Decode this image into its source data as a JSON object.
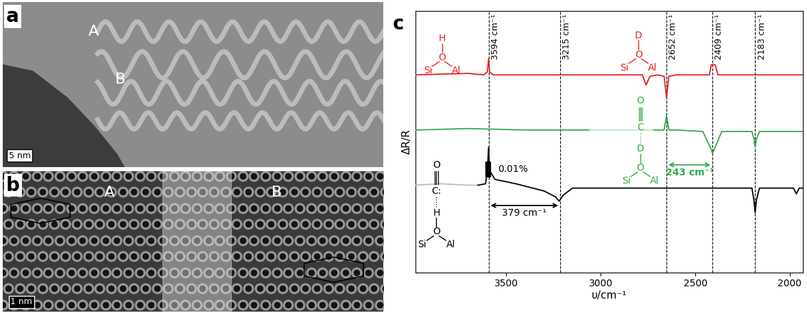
{
  "panels": [
    {
      "label": "a",
      "regions": [
        "A",
        "B"
      ],
      "scale_bar": "5 nm"
    },
    {
      "label": "b",
      "regions": [
        "A",
        "B"
      ],
      "scale_bar": "1 nm"
    }
  ],
  "chart_data": {
    "type": "line",
    "label": "c",
    "xlabel": "υ/cm⁻¹",
    "ylabel": "ΔR/R",
    "xlim": [
      3980,
      1930
    ],
    "xticks": [
      3500,
      3000,
      2500,
      2000
    ],
    "ylim": [
      0,
      0.18
    ],
    "yticks": [],
    "tick_labels": "x",
    "series": [
      {
        "color": "#e3201b",
        "x": [
          3980,
          3700,
          3620,
          3600,
          3594,
          3588,
          3570,
          3300,
          2780,
          2760,
          2740,
          2700,
          2665,
          2652,
          2640,
          2600,
          2425,
          2415,
          2409,
          2395,
          2380,
          1930
        ],
        "values": [
          0.136,
          0.137,
          0.136,
          0.138,
          0.147,
          0.138,
          0.136,
          0.136,
          0.136,
          0.129,
          0.135,
          0.136,
          0.135,
          0.12,
          0.135,
          0.136,
          0.136,
          0.143,
          0.143,
          0.143,
          0.136,
          0.136
        ]
      },
      {
        "color": "#2eaa4a",
        "x": [
          3980,
          3700,
          3400,
          3060
        ],
        "values": [
          0.098,
          0.099,
          0.098,
          0.098
        ]
      },
      {
        "color": "#bfe3c6",
        "x": [
          3060,
          2900,
          2720
        ],
        "values": [
          0.098,
          0.098,
          0.098
        ]
      },
      {
        "color": "#2eaa4a",
        "x": [
          2720,
          2665,
          2652,
          2640,
          2600,
          2460,
          2420,
          2409,
          2395,
          2360,
          2200,
          2190,
          2183,
          2176,
          2160,
          1930
        ],
        "values": [
          0.098,
          0.098,
          0.108,
          0.098,
          0.098,
          0.097,
          0.086,
          0.082,
          0.086,
          0.097,
          0.097,
          0.092,
          0.086,
          0.092,
          0.097,
          0.097
        ]
      },
      {
        "color": "#bbbbbb",
        "x": [
          3980,
          3850,
          3700,
          3650
        ],
        "values": [
          0.06,
          0.061,
          0.06,
          0.06
        ]
      },
      {
        "color": "#000000",
        "x": [
          3650,
          3610,
          3600,
          3594,
          3588,
          3560,
          3450,
          3300,
          3240,
          3220,
          3200,
          3150,
          2700,
          2200,
          2190,
          2183,
          2176,
          2160,
          1980,
          1965,
          1950,
          1930
        ],
        "values": [
          0.06,
          0.061,
          0.07,
          0.086,
          0.07,
          0.064,
          0.061,
          0.056,
          0.052,
          0.049,
          0.053,
          0.058,
          0.058,
          0.058,
          0.05,
          0.041,
          0.05,
          0.058,
          0.058,
          0.054,
          0.058,
          0.058
        ]
      }
    ],
    "vlines": [
      {
        "x": 3594,
        "label": "3594 cm⁻¹"
      },
      {
        "x": 3215,
        "label": "3215 cm⁻¹"
      },
      {
        "x": 2652,
        "label": "2652 cm⁻¹"
      },
      {
        "x": 2409,
        "label": "2409 cm⁻¹"
      },
      {
        "x": 2183,
        "label": "2183 cm⁻¹"
      }
    ],
    "spans": [
      {
        "from": 3594,
        "to": 3215,
        "label": "379 cm⁻¹",
        "color": "#000000"
      },
      {
        "from": 2652,
        "to": 2409,
        "label": "243 cm⁻¹",
        "color": "#2eaa4a"
      }
    ],
    "scale_bar": {
      "value": 0.01,
      "label": "0.01%"
    },
    "structures": [
      {
        "color": "#e3201b",
        "top": "H",
        "center": "O",
        "left": "Si",
        "right": "Al"
      },
      {
        "color": "#e3201b",
        "top": "D",
        "center": "O",
        "left": "Si",
        "right": "Al"
      },
      {
        "color": "#2eaa4a",
        "top": "D",
        "center": "O",
        "left": "Si",
        "right": "Al",
        "adsorbate": [
          "O",
          "C"
        ]
      },
      {
        "color": "#000000",
        "top": "H",
        "center": "O",
        "left": "Si",
        "right": "Al",
        "adsorbate": [
          "O",
          "C:"
        ]
      }
    ]
  }
}
